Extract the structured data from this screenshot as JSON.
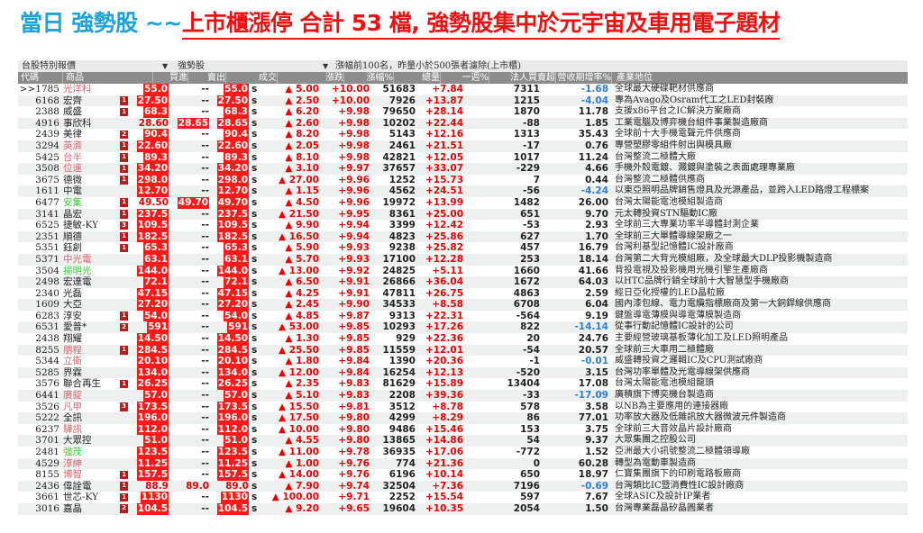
{
  "title": {
    "prefix": "當日 強勢股 ~~",
    "headline": "上市櫃漲停 合計 53 檔, 強勢股集中於元宇宙及車用電子題材"
  },
  "toolbar": {
    "menu1": "台股特別報價",
    "menu2": "強勢股",
    "filter": "漲幅前100名，昨量小於500張者濾除(上市櫃)",
    "dropdown_icon": "▼"
  },
  "colors": {
    "title_blue": "#1aa3e0",
    "title_red": "#ee1111",
    "up": "#ee0000",
    "down": "#2a7fe0",
    "limit_bg": "#ff1a1a",
    "green_name": "#33cc33"
  },
  "columns": [
    "代碼",
    "商品",
    "買進",
    "賣出",
    "成交",
    "漲跌",
    "漲幅%",
    "總量",
    "一週%",
    "法人買賣超",
    "營收期增率%",
    "產業地位"
  ],
  "rows": [
    {
      "code": ">>1785",
      "name": "光洋科",
      "nc": "red",
      "badge": "",
      "bid": "55.0",
      "ask": "--",
      "last": "55.0",
      "chg": "▲ 5.00",
      "pct": "+10.00",
      "vol": "51683",
      "wk": "+7.84",
      "inst": "7311",
      "rev": "-1.68",
      "desc": "全球最大硬碟靶材供應商"
    },
    {
      "code": "6168",
      "name": "宏齊",
      "nc": "black",
      "badge": "1",
      "bid": "27.50",
      "ask": "--",
      "last": "27.50",
      "chg": "▲ 2.50",
      "pct": "+10.00",
      "vol": "7926",
      "wk": "+13.87",
      "inst": "1215",
      "rev": "-4.04",
      "desc": "專為Avago及Osram代工之LED封裝廠"
    },
    {
      "code": "2388",
      "name": "威盛",
      "nc": "black",
      "badge": "1",
      "bid": "68.3",
      "ask": "--",
      "last": "68.3",
      "chg": "▲ 6.20",
      "pct": "+9.98",
      "vol": "79650",
      "wk": "+28.14",
      "inst": "1870",
      "rev": "11.78",
      "desc": "支援x86平台之IC解決方案廠商"
    },
    {
      "code": "4916",
      "name": "事欣科",
      "nc": "black",
      "badge": "",
      "bid": "28.60",
      "ask": "28.65",
      "last": "28.65",
      "chg": "▲ 2.60",
      "pct": "+9.98",
      "vol": "10202",
      "wk": "+22.44",
      "inst": "-88",
      "rev": "1.85",
      "desc": "工業電腦及博弈機台組件事業製造廠商"
    },
    {
      "code": "2439",
      "name": "美律",
      "nc": "black",
      "badge": "2",
      "bid": "90.4",
      "ask": "--",
      "last": "90.4",
      "chg": "▲ 8.20",
      "pct": "+9.98",
      "vol": "5143",
      "wk": "+12.16",
      "inst": "1313",
      "rev": "35.43",
      "desc": "全球前十大手機電聲元件供應商"
    },
    {
      "code": "3294",
      "name": "英濟",
      "nc": "red",
      "badge": "1",
      "bid": "22.60",
      "ask": "--",
      "last": "22.60",
      "chg": "▲ 2.05",
      "pct": "+9.98",
      "vol": "2461",
      "wk": "+21.51",
      "inst": "-17",
      "rev": "0.76",
      "desc": "專營塑膠零組件射出與模具廠"
    },
    {
      "code": "5425",
      "name": "台半",
      "nc": "red",
      "badge": "1",
      "bid": "89.3",
      "ask": "--",
      "last": "89.3",
      "chg": "▲ 8.10",
      "pct": "+9.98",
      "vol": "42821",
      "wk": "+12.05",
      "inst": "1017",
      "rev": "11.24",
      "desc": "台灣整流二極體大廠"
    },
    {
      "code": "3508",
      "name": "位速",
      "nc": "red",
      "badge": "1",
      "bid": "34.20",
      "ask": "--",
      "last": "34.20",
      "chg": "▲ 3.10",
      "pct": "+9.97",
      "vol": "37657",
      "wk": "+33.07",
      "inst": "-229",
      "rev": "4.66",
      "desc": "手機外殼電鍍、濺鍍與塗裝之表面處理專業廠"
    },
    {
      "code": "3675",
      "name": "德微",
      "nc": "black",
      "badge": "1",
      "bid": "298.0",
      "ask": "--",
      "last": "298.0",
      "chg": "▲ 27.00",
      "pct": "+9.96",
      "vol": "1252",
      "wk": "+15.73",
      "inst": "7",
      "rev": "0.44",
      "desc": "台灣整流二極體供應商"
    },
    {
      "code": "1611",
      "name": "中電",
      "nc": "black",
      "badge": "",
      "bid": "12.70",
      "ask": "--",
      "last": "12.70",
      "chg": "▲ 1.15",
      "pct": "+9.96",
      "vol": "4562",
      "wk": "+24.51",
      "inst": "-56",
      "rev": "-4.24",
      "desc": "以東亞照明品牌銷售燈具及光源產品，並跨入LED路燈工程標案"
    },
    {
      "code": "6477",
      "name": "安集",
      "nc": "green",
      "badge": "1",
      "bid": "49.50",
      "ask": "49.70",
      "last": "49.70",
      "chg": "▲ 4.50",
      "pct": "+9.96",
      "vol": "19972",
      "wk": "+13.99",
      "inst": "1482",
      "rev": "26.00",
      "desc": "台灣太陽能電池模組製造商"
    },
    {
      "code": "3141",
      "name": "晶宏",
      "nc": "black",
      "badge": "1",
      "bid": "237.5",
      "ask": "--",
      "last": "237.5",
      "chg": "▲ 21.50",
      "pct": "+9.95",
      "vol": "8361",
      "wk": "+25.00",
      "inst": "651",
      "rev": "9.70",
      "desc": "元太轉投資STN驅動IC廠"
    },
    {
      "code": "6525",
      "name": "捷敏-KY",
      "nc": "black",
      "badge": "3",
      "bid": "109.5",
      "ask": "--",
      "last": "109.5",
      "chg": "▲ 9.90",
      "pct": "+9.94",
      "vol": "3399",
      "wk": "+12.42",
      "inst": "-53",
      "rev": "2.93",
      "desc": "全球前三大專業功率半導體封測企業"
    },
    {
      "code": "2351",
      "name": "順德",
      "nc": "black",
      "badge": "1",
      "bid": "182.5",
      "ask": "--",
      "last": "182.5",
      "chg": "▲ 16.50",
      "pct": "+9.94",
      "vol": "4823",
      "wk": "+25.86",
      "inst": "627",
      "rev": "1.70",
      "desc": "全球前三大單體導線架廠之一"
    },
    {
      "code": "5351",
      "name": "鈺創",
      "nc": "black",
      "badge": "1",
      "bid": "65.3",
      "ask": "--",
      "last": "65.3",
      "chg": "▲ 5.90",
      "pct": "+9.93",
      "vol": "9238",
      "wk": "+25.82",
      "inst": "457",
      "rev": "16.79",
      "desc": "台灣利基型記憶體IC設計廠商"
    },
    {
      "code": "5371",
      "name": "中光電",
      "nc": "red",
      "badge": "",
      "bid": "63.1",
      "ask": "--",
      "last": "63.1",
      "chg": "▲ 5.70",
      "pct": "+9.93",
      "vol": "17100",
      "wk": "+12.28",
      "inst": "253",
      "rev": "18.14",
      "desc": "台灣第二大背光模組廠，及全球最大DLP投影機製造商"
    },
    {
      "code": "3504",
      "name": "揚明光",
      "nc": "green",
      "badge": "",
      "bid": "144.0",
      "ask": "--",
      "last": "144.0",
      "chg": "▲ 13.00",
      "pct": "+9.92",
      "vol": "24825",
      "wk": "+5.11",
      "inst": "1660",
      "rev": "41.66",
      "desc": "背投電視及投影機用光機引擎生產廠商"
    },
    {
      "code": "2498",
      "name": "宏達電",
      "nc": "black",
      "badge": "",
      "bid": "72.1",
      "ask": "--",
      "last": "72.1",
      "chg": "▲ 6.50",
      "pct": "+9.91",
      "vol": "26866",
      "wk": "+36.04",
      "inst": "1672",
      "rev": "64.03",
      "desc": "以HTC品牌行銷全球前十大智慧型手機廠商"
    },
    {
      "code": "2340",
      "name": "光磊",
      "nc": "black",
      "badge": "",
      "bid": "47.15",
      "ask": "--",
      "last": "47.15",
      "chg": "▲ 4.25",
      "pct": "+9.91",
      "vol": "47811",
      "wk": "+26.75",
      "inst": "4863",
      "rev": "2.59",
      "desc": "經日亞化授權的LED晶粒廠"
    },
    {
      "code": "1609",
      "name": "大亞",
      "nc": "black",
      "badge": "",
      "bid": "27.20",
      "ask": "--",
      "last": "27.20",
      "chg": "▲ 2.45",
      "pct": "+9.90",
      "vol": "34533",
      "wk": "+8.58",
      "inst": "6708",
      "rev": "6.04",
      "desc": "國內漆包線、電力電纜指標廠商及第一大銅銲線供應商"
    },
    {
      "code": "6283",
      "name": "淳安",
      "nc": "black",
      "badge": "1",
      "bid": "54.0",
      "ask": "--",
      "last": "54.0",
      "chg": "▲ 4.85",
      "pct": "+9.87",
      "vol": "9313",
      "wk": "+22.31",
      "inst": "-564",
      "rev": "9.19",
      "desc": "鍵盤導電薄膜與導電薄膜製造商"
    },
    {
      "code": "6531",
      "name": "愛普*",
      "nc": "black",
      "badge": "2",
      "bid": "591",
      "ask": "--",
      "last": "591",
      "chg": "▲ 53.00",
      "pct": "+9.85",
      "vol": "10293",
      "wk": "+17.26",
      "inst": "822",
      "rev": "-14.14",
      "desc": "從事行動記憶體IC設計的公司"
    },
    {
      "code": "2438",
      "name": "翔耀",
      "nc": "black",
      "badge": "",
      "bid": "14.50",
      "ask": "--",
      "last": "14.50",
      "chg": "▲ 1.30",
      "pct": "+9.85",
      "vol": "929",
      "wk": "+22.36",
      "inst": "20",
      "rev": "24.76",
      "desc": "主要經營玻璃基板薄化加工及LED照明產品"
    },
    {
      "code": "8255",
      "name": "朋程",
      "nc": "red",
      "badge": "1",
      "bid": "284.5",
      "ask": "--",
      "last": "284.5",
      "chg": "▲ 25.50",
      "pct": "+9.85",
      "vol": "11559",
      "wk": "+12.01",
      "inst": "-54",
      "rev": "20.57",
      "desc": "全球前三大車用二極體廠"
    },
    {
      "code": "5344",
      "name": "立衛",
      "nc": "red",
      "badge": "",
      "bid": "20.10",
      "ask": "--",
      "last": "20.10",
      "chg": "▲ 1.80",
      "pct": "+9.84",
      "vol": "1390",
      "wk": "+20.36",
      "inst": "-1",
      "rev": "-0.01",
      "desc": "威盛轉投資之邏輯IC及CPU測試廠商"
    },
    {
      "code": "5285",
      "name": "界霖",
      "nc": "black",
      "badge": "",
      "bid": "134.0",
      "ask": "--",
      "last": "134.0",
      "chg": "▲ 12.00",
      "pct": "+9.84",
      "vol": "16254",
      "wk": "+12.13",
      "inst": "-520",
      "rev": "3.15",
      "desc": "台灣功率單體及光電導線架供應商"
    },
    {
      "code": "3576",
      "name": "聯合再生",
      "nc": "black",
      "badge": "1",
      "bid": "26.25",
      "ask": "--",
      "last": "26.25",
      "chg": "▲ 2.35",
      "pct": "+9.83",
      "vol": "81629",
      "wk": "+15.89",
      "inst": "13404",
      "rev": "17.08",
      "desc": "台灣太陽能電池模組龍頭"
    },
    {
      "code": "6441",
      "name": "廣錠",
      "nc": "red",
      "badge": "",
      "bid": "57.0",
      "ask": "--",
      "last": "57.0",
      "chg": "▲ 5.10",
      "pct": "+9.83",
      "vol": "2208",
      "wk": "+39.36",
      "inst": "-33",
      "rev": "-17.09",
      "desc": "廣積旗下博奕機台製造商"
    },
    {
      "code": "3526",
      "name": "凡甲",
      "nc": "red",
      "badge": "3",
      "bid": "173.5",
      "ask": "--",
      "last": "173.5",
      "chg": "▲ 15.50",
      "pct": "+9.81",
      "vol": "3512",
      "wk": "+8.78",
      "inst": "578",
      "rev": "3.58",
      "desc": "以NB為主要應用的連接器廠"
    },
    {
      "code": "5222",
      "name": "全訊",
      "nc": "black",
      "badge": "",
      "bid": "196.0",
      "ask": "--",
      "last": "196.0",
      "chg": "▲ 17.50",
      "pct": "+9.80",
      "vol": "4299",
      "wk": "+8.29",
      "inst": "86",
      "rev": "77.01",
      "desc": "功率放大器及低雜訊放大器微波元件製造商"
    },
    {
      "code": "6237",
      "name": "驊訊",
      "nc": "red",
      "badge": "",
      "bid": "112.0",
      "ask": "--",
      "last": "112.0",
      "chg": "▲ 10.00",
      "pct": "+9.80",
      "vol": "9486",
      "wk": "+15.46",
      "inst": "153",
      "rev": "3.75",
      "desc": "全球前三大音效晶片設計廠商"
    },
    {
      "code": "3701",
      "name": "大眾控",
      "nc": "black",
      "badge": "",
      "bid": "51.0",
      "ask": "--",
      "last": "51.0",
      "chg": "▲ 4.55",
      "pct": "+9.80",
      "vol": "13865",
      "wk": "+14.86",
      "inst": "54",
      "rev": "9.37",
      "desc": "大眾集團之控股公司"
    },
    {
      "code": "2481",
      "name": "強茂",
      "nc": "green",
      "badge": "",
      "bid": "123.5",
      "ask": "--",
      "last": "123.5",
      "chg": "▲ 11.00",
      "pct": "+9.78",
      "vol": "36935",
      "wk": "+17.06",
      "inst": "-772",
      "rev": "1.52",
      "desc": "亞洲最大小訊號整流二極體領導廠"
    },
    {
      "code": "4529",
      "name": "淳紳",
      "nc": "red",
      "badge": "",
      "bid": "11.25",
      "ask": "--",
      "last": "11.25",
      "chg": "▲ 1.00",
      "pct": "+9.76",
      "vol": "774",
      "wk": "+21.36",
      "inst": "0",
      "rev": "60.28",
      "desc": "轉型為電動車製造商"
    },
    {
      "code": "8155",
      "name": "博智",
      "nc": "red",
      "badge": "1",
      "bid": "157.5",
      "ask": "--",
      "last": "157.5",
      "chg": "▲ 14.00",
      "pct": "+9.76",
      "vol": "6196",
      "wk": "+10.14",
      "inst": "650",
      "rev": "18.97",
      "desc": "仁寶集團旗下的印刷電路板廠商"
    },
    {
      "code": "2436",
      "name": "偉詮電",
      "nc": "black",
      "badge": "1",
      "bid": "88.9",
      "ask": "89.0",
      "last": "89.0",
      "chg": "▲ 7.90",
      "pct": "+9.74",
      "vol": "32504",
      "wk": "+7.36",
      "inst": "7196",
      "rev": "-0.69",
      "desc": "台灣類比IC暨消費性IC設計廠商"
    },
    {
      "code": "3661",
      "name": "世芯-KY",
      "nc": "black",
      "badge": "1",
      "bid": "1130",
      "ask": "--",
      "last": "1130",
      "chg": "▲ 100.00",
      "pct": "+9.71",
      "vol": "2252",
      "wk": "+15.54",
      "inst": "597",
      "rev": "7.67",
      "desc": "全球ASIC及設計IP業者"
    },
    {
      "code": "3016",
      "name": "嘉晶",
      "nc": "black",
      "badge": "2",
      "bid": "104.5",
      "ask": "--",
      "last": "104.5",
      "chg": "▲ 9.20",
      "pct": "+9.65",
      "vol": "19604",
      "wk": "+10.35",
      "inst": "2054",
      "rev": "1.50",
      "desc": "台灣專業磊晶矽晶圓業者"
    }
  ],
  "last_suffix": "s"
}
